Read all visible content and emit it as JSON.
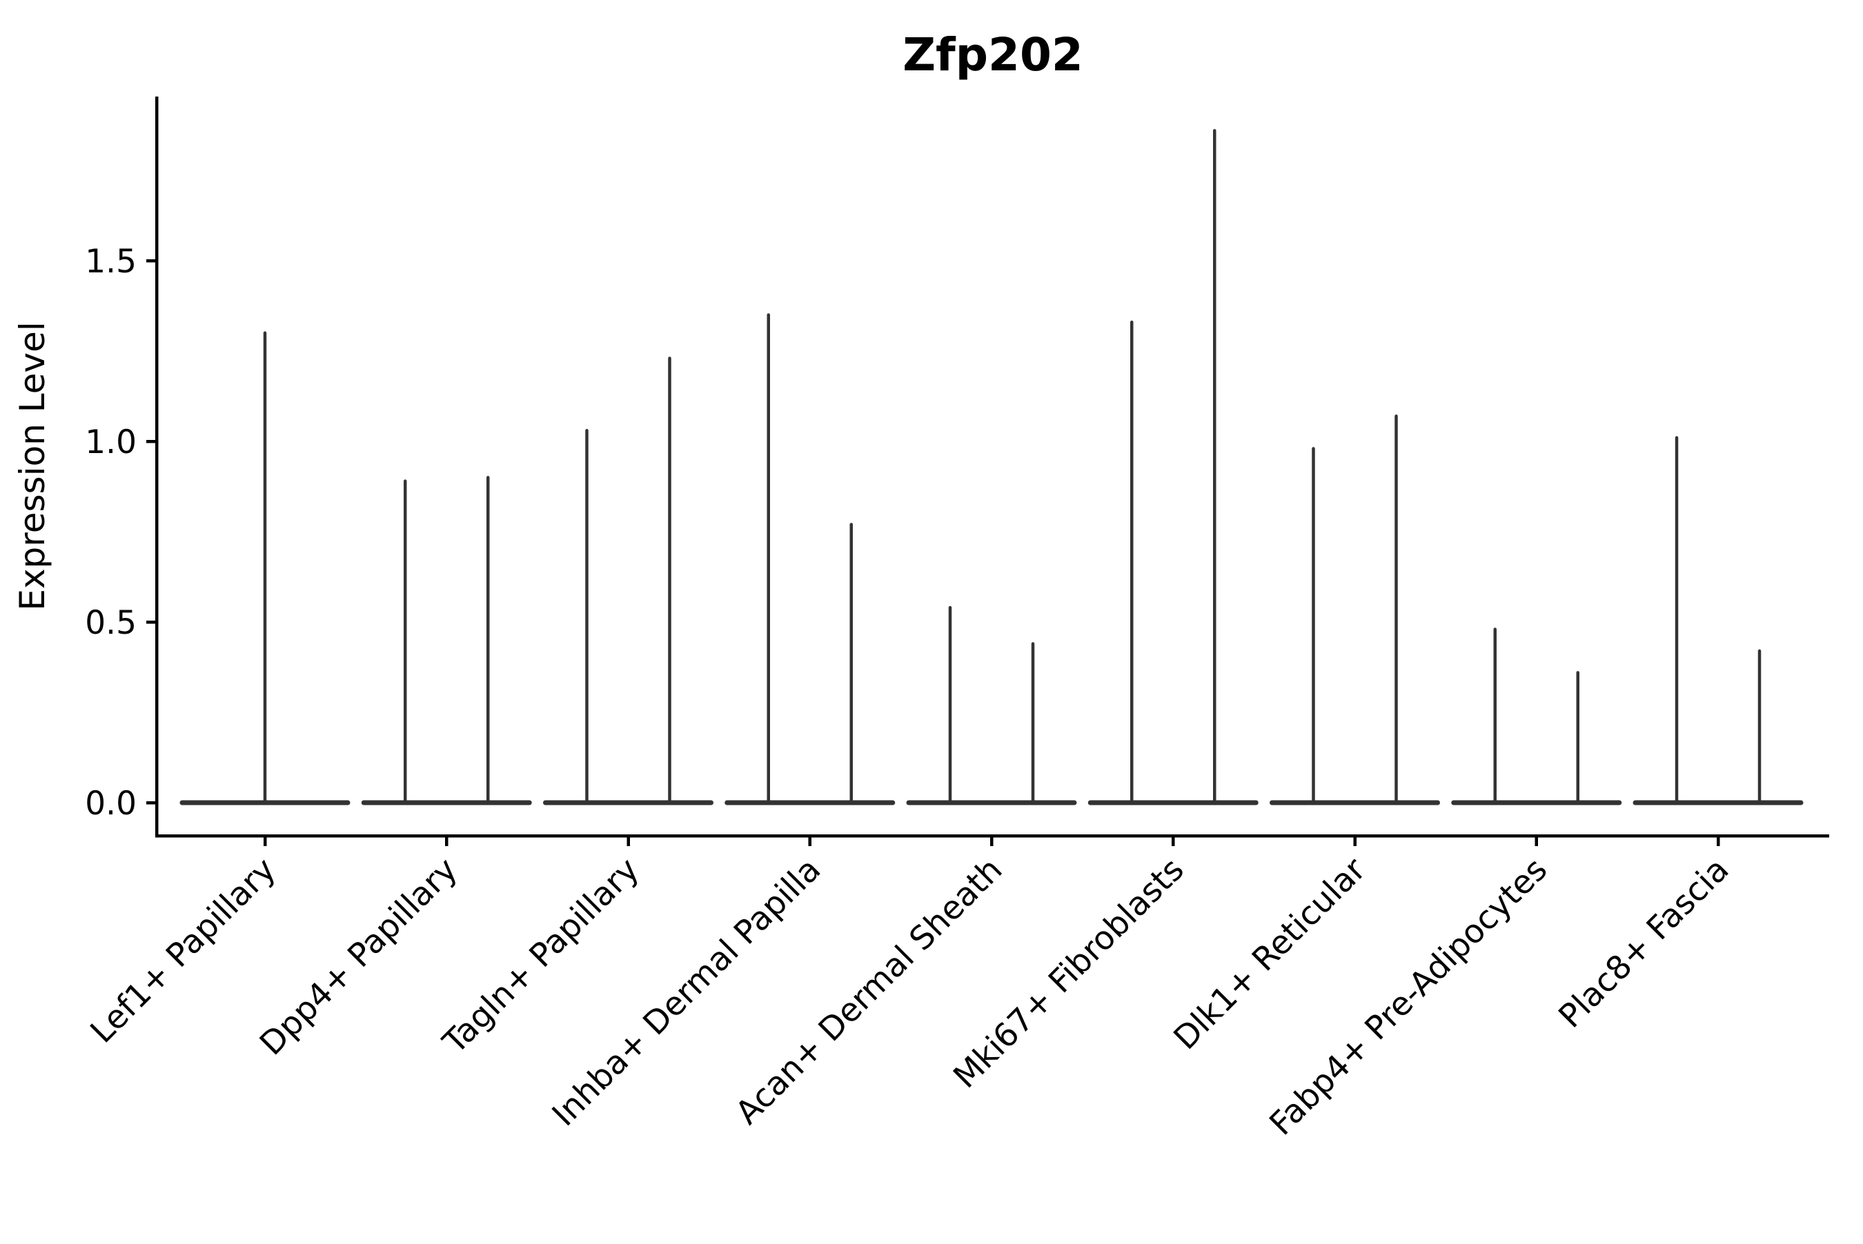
{
  "title": "Zfp202",
  "chart_data": {
    "type": "violin",
    "title": "Zfp202",
    "xlabel": "",
    "ylabel": "Expression Level",
    "ylim": [
      0,
      1.95
    ],
    "yticks": [
      0,
      0.5,
      1.0,
      1.5
    ],
    "ytick_labels": [
      "0.0",
      "0.5",
      "1.0",
      "1.5"
    ],
    "grid": false,
    "legend_position": "none",
    "x_tick_label_rotation_deg": 45,
    "description": "Zero-inflated expression violins: each category shows a wide flat density bulge at expression 0 and one or two extremely thin vertical spikes reaching the maximum expression value. Two spikes per category (left/right split) except Lef1+ Papillary which has a single centered spike.",
    "categories": [
      "Lef1+ Papillary",
      "Dpp4+ Papillary",
      "Tagln+ Papillary",
      "Inhba+ Dermal Papilla",
      "Acan+ Dermal Sheath",
      "Mki67+ Fibroblasts",
      "Dlk1+ Reticular",
      "Fabp4+ Pre-Adipocytes",
      "Plac8+ Fascia"
    ],
    "violins": [
      {
        "category": "Lef1+ Papillary",
        "baseline_value": 0,
        "spikes": [
          {
            "position": "center",
            "max": 1.3
          }
        ]
      },
      {
        "category": "Dpp4+ Papillary",
        "baseline_value": 0,
        "spikes": [
          {
            "position": "left",
            "max": 0.89
          },
          {
            "position": "right",
            "max": 0.9
          }
        ]
      },
      {
        "category": "Tagln+ Papillary",
        "baseline_value": 0,
        "spikes": [
          {
            "position": "left",
            "max": 1.03
          },
          {
            "position": "right",
            "max": 1.23
          }
        ]
      },
      {
        "category": "Inhba+ Dermal Papilla",
        "baseline_value": 0,
        "spikes": [
          {
            "position": "left",
            "max": 1.35
          },
          {
            "position": "right",
            "max": 0.77
          }
        ]
      },
      {
        "category": "Acan+ Dermal Sheath",
        "baseline_value": 0,
        "spikes": [
          {
            "position": "left",
            "max": 0.54
          },
          {
            "position": "right",
            "max": 0.44
          }
        ]
      },
      {
        "category": "Mki67+ Fibroblasts",
        "baseline_value": 0,
        "spikes": [
          {
            "position": "left",
            "max": 1.33
          },
          {
            "position": "right",
            "max": 1.86
          }
        ]
      },
      {
        "category": "Dlk1+ Reticular",
        "baseline_value": 0,
        "spikes": [
          {
            "position": "left",
            "max": 0.98
          },
          {
            "position": "right",
            "max": 1.07
          }
        ]
      },
      {
        "category": "Fabp4+ Pre-Adipocytes",
        "baseline_value": 0,
        "spikes": [
          {
            "position": "left",
            "max": 0.48
          },
          {
            "position": "right",
            "max": 0.36
          }
        ]
      },
      {
        "category": "Plac8+ Fascia",
        "baseline_value": 0,
        "spikes": [
          {
            "position": "left",
            "max": 1.01
          },
          {
            "position": "right",
            "max": 0.42
          }
        ]
      }
    ],
    "style": {
      "violin_color": "#333333",
      "axis_color": "#000000",
      "text_color": "#000000",
      "background": "#ffffff"
    }
  }
}
